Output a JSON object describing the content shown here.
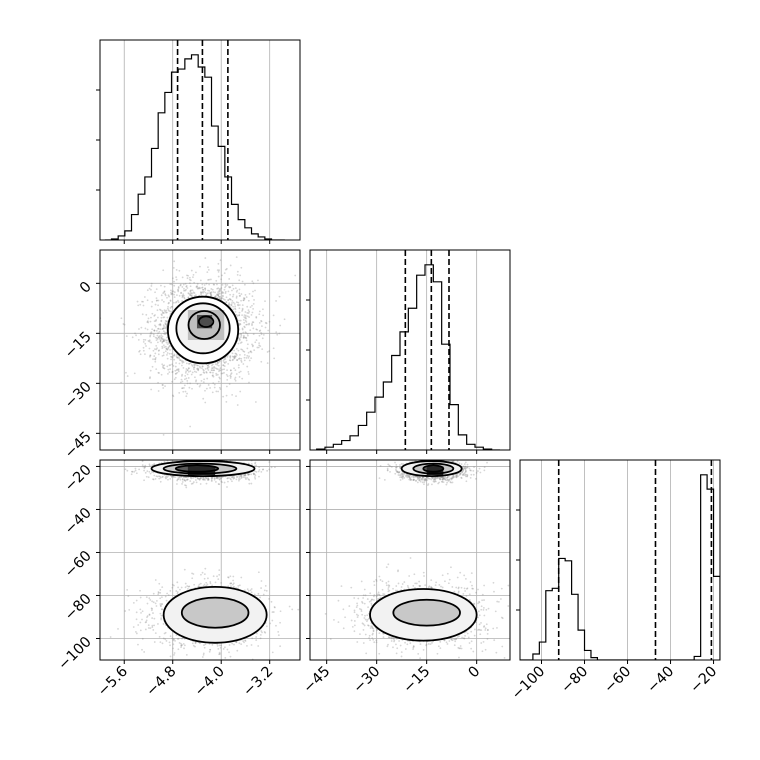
{
  "chart_data": {
    "type": "corner",
    "grid": true,
    "colors": {
      "line": "#000000",
      "grid": "#b0b0b0",
      "scatter": "#8a8a8a"
    },
    "parameters": [
      {
        "id": "p1",
        "range": [
          -6.0,
          -2.7
        ],
        "ticks": [
          -5.6,
          -4.8,
          -4.0,
          -3.2
        ],
        "tick_labels": [
          "−5.6",
          "−4.8",
          "−4.0",
          "−3.2"
        ]
      },
      {
        "id": "p2",
        "range": [
          -50,
          10
        ],
        "ticks": [
          -45,
          -30,
          -15,
          0
        ],
        "tick_labels": [
          "−45",
          "−30",
          "−15",
          "0"
        ]
      },
      {
        "id": "p3",
        "range": [
          -110,
          -17
        ],
        "ticks": [
          -100,
          -80,
          -60,
          -40,
          -20
        ],
        "tick_labels": [
          "−100",
          "−80",
          "−60",
          "−40",
          "−20"
        ]
      }
    ],
    "histograms": [
      {
        "param": "p1",
        "bin_edges": [
          -5.92,
          -5.81,
          -5.7,
          -5.59,
          -5.48,
          -5.37,
          -5.26,
          -5.15,
          -5.04,
          -4.93,
          -4.82,
          -4.71,
          -4.6,
          -4.49,
          -4.38,
          -4.27,
          -4.16,
          -4.05,
          -3.94,
          -3.83,
          -3.72,
          -3.61,
          -3.5,
          -3.39,
          -3.28,
          -3.17,
          -3.06,
          -2.95
        ],
        "counts": [
          0,
          1,
          4,
          9,
          25,
          45,
          62,
          90,
          125,
          145,
          165,
          168,
          178,
          182,
          170,
          160,
          112,
          92,
          62,
          35,
          20,
          12,
          6,
          3,
          1,
          0,
          0
        ],
        "quantiles": [
          -4.72,
          -4.31,
          -3.89
        ]
      },
      {
        "param": "p2",
        "bin_edges": [
          -48,
          -45.5,
          -43,
          -40.5,
          -38,
          -35.5,
          -33,
          -30.5,
          -28,
          -25.5,
          -23,
          -20.5,
          -18,
          -15.5,
          -13,
          -10.5,
          -8,
          -5.5,
          -3,
          -0.5,
          2,
          4.5,
          7
        ],
        "counts": [
          1,
          3,
          6,
          10,
          15,
          26,
          40,
          56,
          72,
          100,
          125,
          150,
          185,
          196,
          178,
          112,
          48,
          16,
          6,
          3,
          1,
          0
        ],
        "quantiles": [
          -21.4,
          -13.6,
          -8.3
        ]
      },
      {
        "param": "p3",
        "bin_edges": [
          -110,
          -107,
          -104,
          -101,
          -98,
          -95,
          -92,
          -89,
          -86,
          -83,
          -80,
          -77,
          -74,
          -71,
          -68,
          -65,
          -62,
          -59,
          -56,
          -53,
          -50,
          -47,
          -44,
          -41,
          -38,
          -35,
          -32,
          -29,
          -26,
          -23,
          -20,
          -17
        ],
        "counts": [
          0,
          0,
          5,
          15,
          58,
          60,
          85,
          83,
          55,
          25,
          8,
          2,
          0,
          0,
          0,
          0,
          0,
          0,
          0,
          0,
          0,
          0,
          0,
          0,
          0,
          0,
          0,
          3,
          155,
          143,
          70
        ],
        "quantiles": [
          -92,
          -47,
          -21
        ]
      }
    ],
    "joint": [
      {
        "x": "p1",
        "y": "p2",
        "samples": {
          "n": 2600,
          "components": [
            {
              "weight": 1.0,
              "mu": [
                -4.3,
                -14
              ],
              "sigma": [
                0.42,
                7.5
              ]
            }
          ]
        },
        "contours": [
          {
            "level": 0.12,
            "center": [
              -4.3,
              -14
            ],
            "radii": [
              0.58,
              10.0
            ]
          },
          {
            "level": 0.39,
            "center": [
              -4.3,
              -13.5
            ],
            "radii": [
              0.44,
              7.5
            ]
          },
          {
            "level": 0.68,
            "center": [
              -4.28,
              -12.5
            ],
            "radii": [
              0.26,
              4.2
            ]
          },
          {
            "level": 0.86,
            "center": [
              -4.25,
              -11.5
            ],
            "radii": [
              0.12,
              1.6
            ]
          }
        ],
        "peak_cells": [
          {
            "x": [
              -4.4,
              -4.15
            ],
            "y": [
              -13.5,
              -9.5
            ],
            "intensity": 0.7
          },
          {
            "x": [
              -4.55,
              -3.95
            ],
            "y": [
              -17,
              -8
            ],
            "intensity": 0.25
          }
        ]
      },
      {
        "x": "p1",
        "y": "p3",
        "samples": {
          "n": 3200,
          "components": [
            {
              "weight": 0.55,
              "mu": [
                -4.2,
                -89
              ],
              "sigma": [
                0.45,
                7
              ]
            },
            {
              "weight": 0.45,
              "mu": [
                -4.3,
                -22
              ],
              "sigma": [
                0.4,
                2.2
              ]
            }
          ]
        },
        "contours": [
          {
            "level": 0.39,
            "center": [
              -4.1,
              -89
            ],
            "radii": [
              0.85,
              13
            ]
          },
          {
            "level": 0.68,
            "center": [
              -4.1,
              -88
            ],
            "radii": [
              0.55,
              7
            ]
          },
          {
            "level": 0.39,
            "center": [
              -4.3,
              -21
            ],
            "radii": [
              0.85,
              3.5
            ]
          },
          {
            "level": 0.68,
            "center": [
              -4.35,
              -21
            ],
            "radii": [
              0.6,
              2.3
            ]
          },
          {
            "level": 0.86,
            "center": [
              -4.4,
              -21
            ],
            "radii": [
              0.35,
              1.5
            ]
          }
        ],
        "peak_cells": [
          {
            "x": [
              -4.55,
              -4.1
            ],
            "y": [
              -24,
              -20
            ],
            "intensity": 0.85
          }
        ]
      },
      {
        "x": "p2",
        "y": "p3",
        "samples": {
          "n": 3200,
          "components": [
            {
              "weight": 0.55,
              "mu": [
                -16,
                -89
              ],
              "sigma": [
                9,
                7
              ]
            },
            {
              "weight": 0.45,
              "mu": [
                -13,
                -22
              ],
              "sigma": [
                5,
                2.2
              ]
            }
          ]
        },
        "contours": [
          {
            "level": 0.39,
            "center": [
              -16,
              -89
            ],
            "radii": [
              16,
              12
            ]
          },
          {
            "level": 0.68,
            "center": [
              -15,
              -88
            ],
            "radii": [
              10,
              6
            ]
          },
          {
            "level": 0.39,
            "center": [
              -13.5,
              -21
            ],
            "radii": [
              9,
              3.5
            ]
          },
          {
            "level": 0.68,
            "center": [
              -13,
              -21
            ],
            "radii": [
              6,
              2.3
            ]
          },
          {
            "level": 0.86,
            "center": [
              -13,
              -21
            ],
            "radii": [
              3,
              1.5
            ]
          }
        ],
        "peak_cells": [
          {
            "x": [
              -15,
              -10
            ],
            "y": [
              -24,
              -20
            ],
            "intensity": 0.85
          }
        ]
      }
    ]
  }
}
